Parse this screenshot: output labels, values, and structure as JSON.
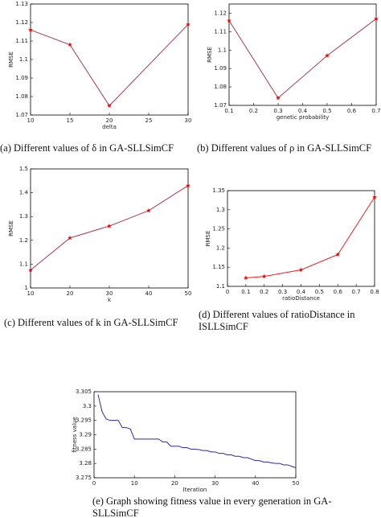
{
  "chart_data": [
    {
      "type": "line",
      "caption": "(a) Different values of δ in GA-SLLSimCF",
      "xlabel": "delta",
      "ylabel": "RMSE",
      "x": [
        10,
        15,
        20,
        30
      ],
      "values": [
        1.116,
        1.108,
        1.075,
        1.119
      ],
      "color": "#a33a55",
      "marker_color": "#e01010",
      "markers": true,
      "xlim": [
        10,
        30
      ],
      "xticks": [
        10,
        15,
        20,
        25,
        30
      ],
      "ylim": [
        1.07,
        1.13
      ],
      "yticks": [
        1.07,
        1.08,
        1.09,
        1.1,
        1.11,
        1.12,
        1.13
      ]
    },
    {
      "type": "line",
      "caption": "(b) Different values of ρ in GA-SLLSimCF",
      "xlabel": "genetic probability",
      "ylabel": "RMSE",
      "x": [
        0.1,
        0.3,
        0.5,
        0.7
      ],
      "values": [
        1.116,
        1.074,
        1.097,
        1.117
      ],
      "color": "#a33a55",
      "marker_color": "#e01010",
      "markers": true,
      "xlim": [
        0.1,
        0.7
      ],
      "xticks": [
        0.1,
        0.2,
        0.3,
        0.4,
        0.5,
        0.6,
        0.7
      ],
      "ylim": [
        1.07,
        1.125
      ],
      "yticks": [
        1.07,
        1.08,
        1.09,
        1.1,
        1.11,
        1.12
      ]
    },
    {
      "type": "line",
      "caption": "(c) Different values of k in GA-SLLSimCF",
      "xlabel": "k",
      "ylabel": "RMSE",
      "x": [
        10,
        20,
        30,
        40,
        50
      ],
      "values": [
        1.075,
        1.21,
        1.26,
        1.325,
        1.43
      ],
      "color": "#a33a55",
      "marker_color": "#e01010",
      "markers": true,
      "xlim": [
        10,
        50
      ],
      "xticks": [
        10,
        20,
        30,
        40,
        50
      ],
      "ylim": [
        1,
        1.5
      ],
      "yticks": [
        1,
        1.1,
        1.2,
        1.3,
        1.4,
        1.5
      ]
    },
    {
      "type": "line",
      "caption": "(d) Different values of ratioDistance in ISLLSimCF",
      "xlabel": "ratioDistance",
      "ylabel": "RMSE",
      "x": [
        0.1,
        0.2,
        0.4,
        0.6,
        0.8
      ],
      "values": [
        1.122,
        1.126,
        1.143,
        1.183,
        1.333
      ],
      "color": "#e82020",
      "marker_color": "#e01010",
      "markers": true,
      "xlim": [
        0,
        0.8
      ],
      "xticks": [
        0,
        0.1,
        0.2,
        0.3,
        0.4,
        0.5,
        0.6,
        0.7,
        0.8
      ],
      "ylim": [
        1.1,
        1.35
      ],
      "yticks": [
        1.1,
        1.15,
        1.2,
        1.25,
        1.3,
        1.35
      ]
    },
    {
      "type": "line",
      "caption": "(e) Graph showing fitness value in every generation in GA-SLLSimCF",
      "xlabel": "Iteration",
      "ylabel": "fitness value",
      "x": [
        1,
        2,
        3,
        4,
        5,
        6,
        7,
        8,
        9,
        10,
        11,
        12,
        13,
        14,
        15,
        16,
        17,
        18,
        19,
        20,
        21,
        22,
        23,
        24,
        25,
        26,
        27,
        28,
        29,
        30,
        31,
        32,
        33,
        34,
        35,
        36,
        37,
        38,
        39,
        40,
        41,
        42,
        43,
        44,
        45,
        46,
        47,
        48,
        49,
        50
      ],
      "values": [
        3.304,
        3.298,
        3.2955,
        3.295,
        3.295,
        3.295,
        3.2925,
        3.2925,
        3.292,
        3.2885,
        3.2885,
        3.2885,
        3.2885,
        3.2885,
        3.2885,
        3.2885,
        3.2875,
        3.2875,
        3.286,
        3.286,
        3.286,
        3.2855,
        3.2855,
        3.285,
        3.285,
        3.2848,
        3.2845,
        3.2845,
        3.284,
        3.284,
        3.2835,
        3.2835,
        3.283,
        3.283,
        3.2825,
        3.2825,
        3.282,
        3.282,
        3.2815,
        3.281,
        3.281,
        3.2805,
        3.2805,
        3.2802,
        3.28,
        3.28,
        3.2795,
        3.2795,
        3.279,
        3.2785
      ],
      "color": "#2b2b9e",
      "markers": false,
      "xlim": [
        0,
        50
      ],
      "xticks": [
        0,
        10,
        20,
        30,
        40,
        50
      ],
      "ylim": [
        3.275,
        3.305
      ],
      "yticks": [
        3.275,
        3.28,
        3.285,
        3.29,
        3.295,
        3.3,
        3.305
      ]
    }
  ]
}
